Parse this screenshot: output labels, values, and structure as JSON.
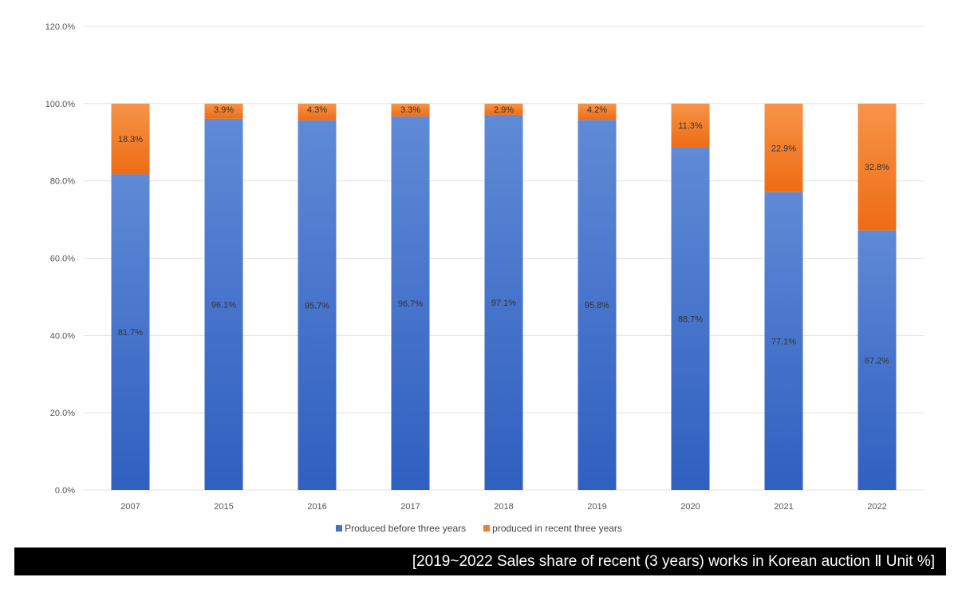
{
  "chart_data": {
    "type": "bar",
    "stacked": true,
    "categories": [
      "2007",
      "2015",
      "2016",
      "2017",
      "2018",
      "2019",
      "2020",
      "2021",
      "2022"
    ],
    "series": [
      {
        "name": "Produced before three years",
        "color": "#4472C4",
        "values": [
          81.7,
          96.1,
          95.7,
          96.7,
          97.1,
          95.8,
          88.7,
          77.1,
          67.2
        ]
      },
      {
        "name": "produced in recent three years",
        "color": "#ED7D31",
        "values": [
          18.3,
          3.9,
          4.3,
          3.3,
          2.9,
          4.2,
          11.3,
          22.9,
          32.8
        ]
      }
    ],
    "ylim": [
      0,
      120
    ],
    "yticks": [
      "0.0%",
      "20.0%",
      "40.0%",
      "60.0%",
      "80.0%",
      "100.0%",
      "120.0%"
    ],
    "grid": true,
    "legend": "bottom",
    "title": ""
  },
  "caption": "[2019~2022 Sales share of recent (3 years) works in Korean auction Ⅱ Unit %]"
}
